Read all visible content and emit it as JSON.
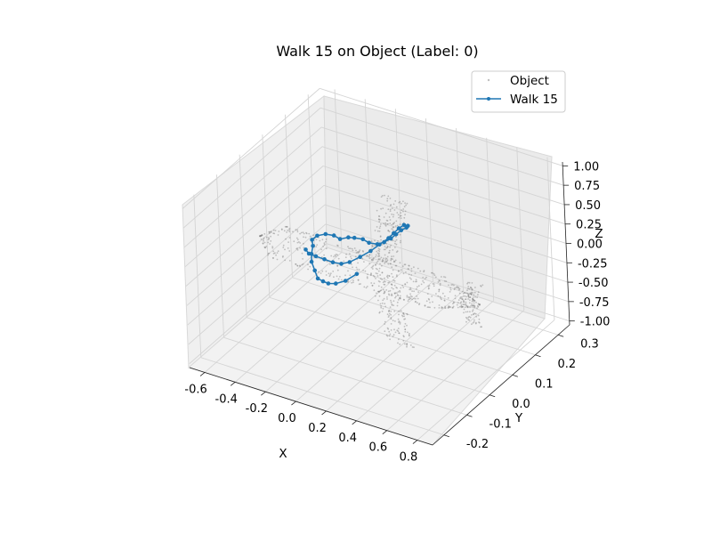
{
  "chart_data": {
    "type": "scatter",
    "projection": "3d",
    "title": "Walk 15 on Object (Label: 0)",
    "xlabel": "X",
    "ylabel": "Y",
    "zlabel": "Z",
    "xlim": [
      -0.7,
      0.9
    ],
    "ylim": [
      -0.25,
      0.35
    ],
    "zlim": [
      -1.05,
      1.05
    ],
    "x_ticks": [
      "-0.6",
      "-0.4",
      "-0.2",
      "0.0",
      "0.2",
      "0.4",
      "0.6",
      "0.8"
    ],
    "y_ticks": [
      "-0.2",
      "-0.1",
      "0.0",
      "0.1",
      "0.2",
      "0.3"
    ],
    "z_ticks": [
      "-1.00",
      "-0.75",
      "-0.50",
      "-0.25",
      "0.00",
      "0.25",
      "0.50",
      "0.75",
      "1.00"
    ],
    "grid": true,
    "legend_position": "top-right",
    "series": [
      {
        "name": "Object",
        "kind": "points",
        "color": "#808080",
        "description": "airplane point cloud"
      },
      {
        "name": "Walk 15",
        "kind": "line-markers",
        "color": "#1f77b4"
      }
    ],
    "walk_points": [
      [
        0.08,
        -0.02,
        0.05
      ],
      [
        0.05,
        -0.05,
        0.02
      ],
      [
        0.0,
        -0.06,
        -0.02
      ],
      [
        -0.05,
        -0.06,
        -0.05
      ],
      [
        -0.1,
        -0.05,
        -0.08
      ],
      [
        -0.15,
        -0.04,
        -0.1
      ],
      [
        -0.2,
        -0.02,
        -0.08
      ],
      [
        -0.25,
        0.0,
        -0.05
      ],
      [
        -0.28,
        0.02,
        -0.02
      ],
      [
        -0.3,
        0.04,
        0.02
      ],
      [
        -0.32,
        0.05,
        0.06
      ],
      [
        -0.3,
        0.06,
        0.1
      ],
      [
        -0.26,
        0.07,
        0.12
      ],
      [
        -0.22,
        0.08,
        0.1
      ],
      [
        -0.18,
        0.08,
        0.08
      ],
      [
        -0.14,
        0.09,
        0.1
      ],
      [
        -0.1,
        0.09,
        0.12
      ],
      [
        -0.06,
        0.1,
        0.1
      ],
      [
        -0.02,
        0.1,
        0.08
      ],
      [
        0.02,
        0.11,
        0.06
      ],
      [
        0.05,
        0.12,
        0.08
      ],
      [
        0.08,
        0.13,
        0.12
      ],
      [
        0.1,
        0.14,
        0.16
      ],
      [
        0.12,
        0.15,
        0.2
      ],
      [
        0.14,
        0.16,
        0.22
      ],
      [
        0.15,
        0.16,
        0.25
      ],
      [
        0.14,
        0.15,
        0.28
      ],
      [
        0.12,
        0.14,
        0.25
      ],
      [
        0.1,
        0.13,
        0.2
      ],
      [
        0.08,
        0.12,
        0.15
      ],
      [
        0.05,
        0.1,
        0.1
      ],
      [
        0.02,
        0.08,
        0.05
      ],
      [
        -0.02,
        0.06,
        0.0
      ],
      [
        -0.06,
        0.04,
        -0.04
      ],
      [
        -0.1,
        0.03,
        -0.06
      ],
      [
        -0.14,
        0.02,
        -0.04
      ],
      [
        -0.18,
        0.01,
        0.0
      ],
      [
        -0.22,
        0.0,
        0.04
      ],
      [
        -0.25,
        -0.01,
        0.08
      ],
      [
        -0.27,
        -0.01,
        0.12
      ]
    ]
  }
}
